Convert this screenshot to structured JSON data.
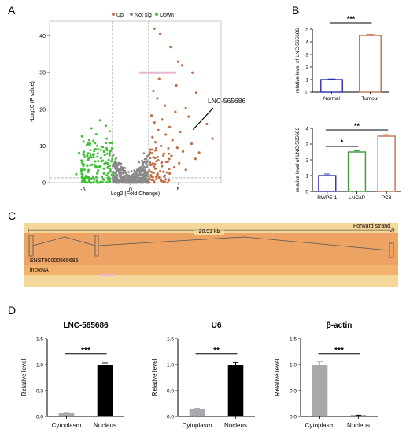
{
  "panel_labels": [
    "A",
    "B",
    "C",
    "D"
  ],
  "chart_data": [
    {
      "id": "A",
      "type": "scatter",
      "title": "",
      "xlabel": "Log2 (Fold Change)",
      "ylabel": "-Log10 (P value)",
      "xlim": [
        -8.5,
        9.5
      ],
      "ylim": [
        0,
        44
      ],
      "xticks": [
        "-5",
        "0",
        "5"
      ],
      "yticks": [
        "0",
        "10",
        "20",
        "30",
        "40"
      ],
      "legend": [
        "Up",
        "Not sig",
        "Down"
      ],
      "legend_position": "top",
      "annotation": "LNC-565686",
      "annotation_point": [
        6.3,
        13.8
      ],
      "fc_threshold": [
        -1.9,
        1.9
      ],
      "p_threshold": 1.3,
      "colors": {
        "up": "#c0714a",
        "notsig": "#8a8a8a",
        "down": "#3fbf33",
        "highlight": "#e7b7cc"
      },
      "up_points": [
        [
          2.5,
          42
        ],
        [
          3.1,
          40.5
        ],
        [
          4.2,
          37
        ],
        [
          5,
          33
        ],
        [
          5.4,
          32
        ],
        [
          6.5,
          30
        ],
        [
          3,
          28.3
        ],
        [
          4.8,
          26.5
        ],
        [
          2.4,
          25
        ],
        [
          6.9,
          24.5
        ],
        [
          2.8,
          23
        ],
        [
          3.6,
          21
        ],
        [
          5.8,
          20.3
        ],
        [
          4.7,
          19.3
        ],
        [
          2.2,
          18.3
        ],
        [
          6.1,
          18
        ],
        [
          3.3,
          17.2
        ],
        [
          2.5,
          16.4
        ],
        [
          8,
          16
        ],
        [
          4.1,
          15.2
        ],
        [
          2.9,
          14.3
        ],
        [
          5.2,
          13.8
        ],
        [
          3.7,
          13.1
        ],
        [
          2.3,
          12.4
        ],
        [
          8.6,
          12
        ],
        [
          4.4,
          11.6
        ],
        [
          2.6,
          11
        ],
        [
          6.4,
          10.6
        ],
        [
          3.2,
          10
        ],
        [
          4.9,
          9.5
        ],
        [
          2.1,
          9
        ],
        [
          5.5,
          8.5
        ],
        [
          7.2,
          8.2
        ],
        [
          3.5,
          7.9
        ],
        [
          4.3,
          7.3
        ],
        [
          2.4,
          6.9
        ],
        [
          6.8,
          6.5
        ],
        [
          2.9,
          6.1
        ],
        [
          3.9,
          5.7
        ],
        [
          5.1,
          5.3
        ],
        [
          2.2,
          4.9
        ],
        [
          3.3,
          4.5
        ],
        [
          4.6,
          4.2
        ],
        [
          2.6,
          3.8
        ],
        [
          5.8,
          3.5
        ],
        [
          3.1,
          3.1
        ],
        [
          2.3,
          2.8
        ],
        [
          4.1,
          2.5
        ],
        [
          2.8,
          2.2
        ],
        [
          3.6,
          1.9
        ]
      ],
      "down_points": [
        [
          -3.2,
          17
        ],
        [
          -2.6,
          15.5
        ],
        [
          -4.1,
          14.8
        ],
        [
          -2.2,
          14
        ],
        [
          -3.6,
          13.2
        ],
        [
          -5.1,
          12.6
        ],
        [
          -2.5,
          12
        ],
        [
          -3.9,
          11.4
        ],
        [
          -2.2,
          10.8
        ],
        [
          -4.6,
          10.2
        ],
        [
          -2.9,
          9.7
        ],
        [
          -3.4,
          9.1
        ],
        [
          -2.1,
          8.6
        ],
        [
          -5.4,
          8.1
        ],
        [
          -2.7,
          7.6
        ],
        [
          -4.2,
          7.2
        ],
        [
          -3.1,
          6.7
        ],
        [
          -2.3,
          6.2
        ],
        [
          -3.7,
          5.8
        ],
        [
          -2.6,
          5.4
        ],
        [
          -4.9,
          5
        ],
        [
          -2.2,
          4.6
        ],
        [
          -3.3,
          4.2
        ],
        [
          -2.8,
          3.8
        ],
        [
          -4.4,
          3.4
        ],
        [
          -2.1,
          3
        ],
        [
          -3.5,
          2.7
        ],
        [
          -5.7,
          2.3
        ],
        [
          -2.5,
          2
        ],
        [
          -3.9,
          1.7
        ],
        [
          -2.3,
          1.5
        ],
        [
          -3,
          1.6
        ],
        [
          -4.7,
          1.8
        ],
        [
          -2.8,
          2.5
        ],
        [
          -3.4,
          3.3
        ],
        [
          -2.4,
          4
        ],
        [
          -3.8,
          4.9
        ],
        [
          -2.9,
          6
        ],
        [
          -4.1,
          6.9
        ],
        [
          -2.2,
          7.9
        ]
      ],
      "notsig_points": [
        [
          -1.6,
          0.2
        ],
        [
          -1.3,
          0.4
        ],
        [
          -1.0,
          0.6
        ],
        [
          -0.7,
          0.8
        ],
        [
          -0.4,
          1.0
        ],
        [
          -0.1,
          1.2
        ],
        [
          0.2,
          1.4
        ],
        [
          0.5,
          1.6
        ],
        [
          0.8,
          1.8
        ],
        [
          1.1,
          2.0
        ],
        [
          1.4,
          2.2
        ],
        [
          1.7,
          2.4
        ],
        [
          -1.5,
          2.8
        ],
        [
          -1.2,
          3.2
        ],
        [
          -0.9,
          3.6
        ],
        [
          -0.6,
          4.0
        ],
        [
          -0.3,
          0.3
        ],
        [
          0.0,
          0.5
        ],
        [
          0.3,
          0.7
        ],
        [
          0.6,
          0.9
        ],
        [
          0.9,
          1.1
        ],
        [
          1.2,
          1.3
        ],
        [
          1.5,
          1.5
        ],
        [
          1.8,
          1.7
        ],
        [
          -1.7,
          1.9
        ],
        [
          -1.4,
          2.1
        ],
        [
          -1.1,
          2.3
        ],
        [
          -0.8,
          2.5
        ],
        [
          -0.5,
          2.7
        ],
        [
          -0.2,
          2.9
        ],
        [
          0.1,
          3.1
        ],
        [
          0.4,
          3.3
        ],
        [
          0.7,
          3.5
        ],
        [
          1.0,
          3.7
        ],
        [
          1.3,
          3.9
        ],
        [
          1.6,
          4.1
        ],
        [
          -1.6,
          4.4
        ],
        [
          -1.3,
          4.8
        ],
        [
          -1.0,
          5.2
        ],
        [
          0.9,
          5.6
        ],
        [
          1.2,
          6.0
        ],
        [
          1.5,
          6.4
        ],
        [
          -1.5,
          6.8
        ],
        [
          1.7,
          7.2
        ],
        [
          -1.8,
          7.6
        ],
        [
          1.4,
          8.0
        ],
        [
          -1.2,
          0.1
        ],
        [
          0.6,
          0.2
        ],
        [
          1.6,
          0.9
        ],
        [
          -0.8,
          1.3
        ]
      ],
      "highlight_bar": {
        "x0": 0.9,
        "x1": 4.8,
        "y": 30
      }
    },
    {
      "id": "B-top",
      "type": "bar",
      "title": "",
      "categories": [
        "Normal",
        "Tumour"
      ],
      "values": [
        1.0,
        4.5
      ],
      "errors": [
        0.05,
        0.1
      ],
      "ylabel": "relative level of LNC-565686",
      "ylim": [
        0,
        5
      ],
      "yticks": [
        "0",
        "1",
        "2",
        "3",
        "4",
        "5"
      ],
      "significance": [
        "***"
      ],
      "colors": [
        "#2d2db0",
        "#c0714a"
      ]
    },
    {
      "id": "B-bottom",
      "type": "bar",
      "title": "",
      "categories": [
        "RWPE-1",
        "LNCaP",
        "PC3"
      ],
      "values": [
        1.0,
        2.5,
        3.5
      ],
      "errors": [
        0.1,
        0.08,
        0.1
      ],
      "ylabel": "relative level of LNC-565686",
      "ylim": [
        0,
        4
      ],
      "yticks": [
        "0",
        "1",
        "2",
        "3",
        "4"
      ],
      "significance": [
        "*",
        "**"
      ],
      "colors": [
        "#2d2db0",
        "#3a9a33",
        "#c0714a"
      ]
    },
    {
      "id": "D1",
      "type": "bar",
      "title": "LNC-565686",
      "categories": [
        "Cytoplasm",
        "Nucleus"
      ],
      "values": [
        0.07,
        1.0
      ],
      "errors": [
        0.01,
        0.03
      ],
      "ylabel": "Relative level",
      "ylim": [
        0,
        1.5
      ],
      "yticks": [
        "0.0",
        "0.5",
        "1.0",
        "1.5"
      ],
      "significance": [
        "***"
      ],
      "colors": [
        "#a8a8ad",
        "#000000"
      ]
    },
    {
      "id": "D2",
      "type": "bar",
      "title": "U6",
      "categories": [
        "Cytoplasm",
        "Nucleus"
      ],
      "values": [
        0.15,
        1.0
      ],
      "errors": [
        0.01,
        0.04
      ],
      "ylabel": "Relative level",
      "ylim": [
        0,
        1.5
      ],
      "yticks": [
        "0.0",
        "0.5",
        "1.0",
        "1.5"
      ],
      "significance": [
        "**"
      ],
      "colors": [
        "#a8a8ad",
        "#000000"
      ]
    },
    {
      "id": "D3",
      "type": "bar",
      "title": "β-actin",
      "categories": [
        "Cytoplasm",
        "Nucleus"
      ],
      "values": [
        1.0,
        0.02
      ],
      "errors": [
        0.05,
        0.005
      ],
      "ylabel": "Relative level",
      "ylim": [
        0,
        1.5
      ],
      "yticks": [
        "0.0",
        "0.5",
        "1.0",
        "1.5"
      ],
      "significance": [
        "***"
      ],
      "colors": [
        "#a8a8ad",
        "#000000"
      ]
    }
  ],
  "panel_c": {
    "length": "20.91 kb",
    "strand": "Forward strand",
    "transcript": "ENST00000565686",
    "biotype": "lncRNA",
    "colors": {
      "band": "#f6d79a",
      "track": "#f3b26c",
      "box": "#e79a5f",
      "pink": "#e7b7cc"
    }
  }
}
